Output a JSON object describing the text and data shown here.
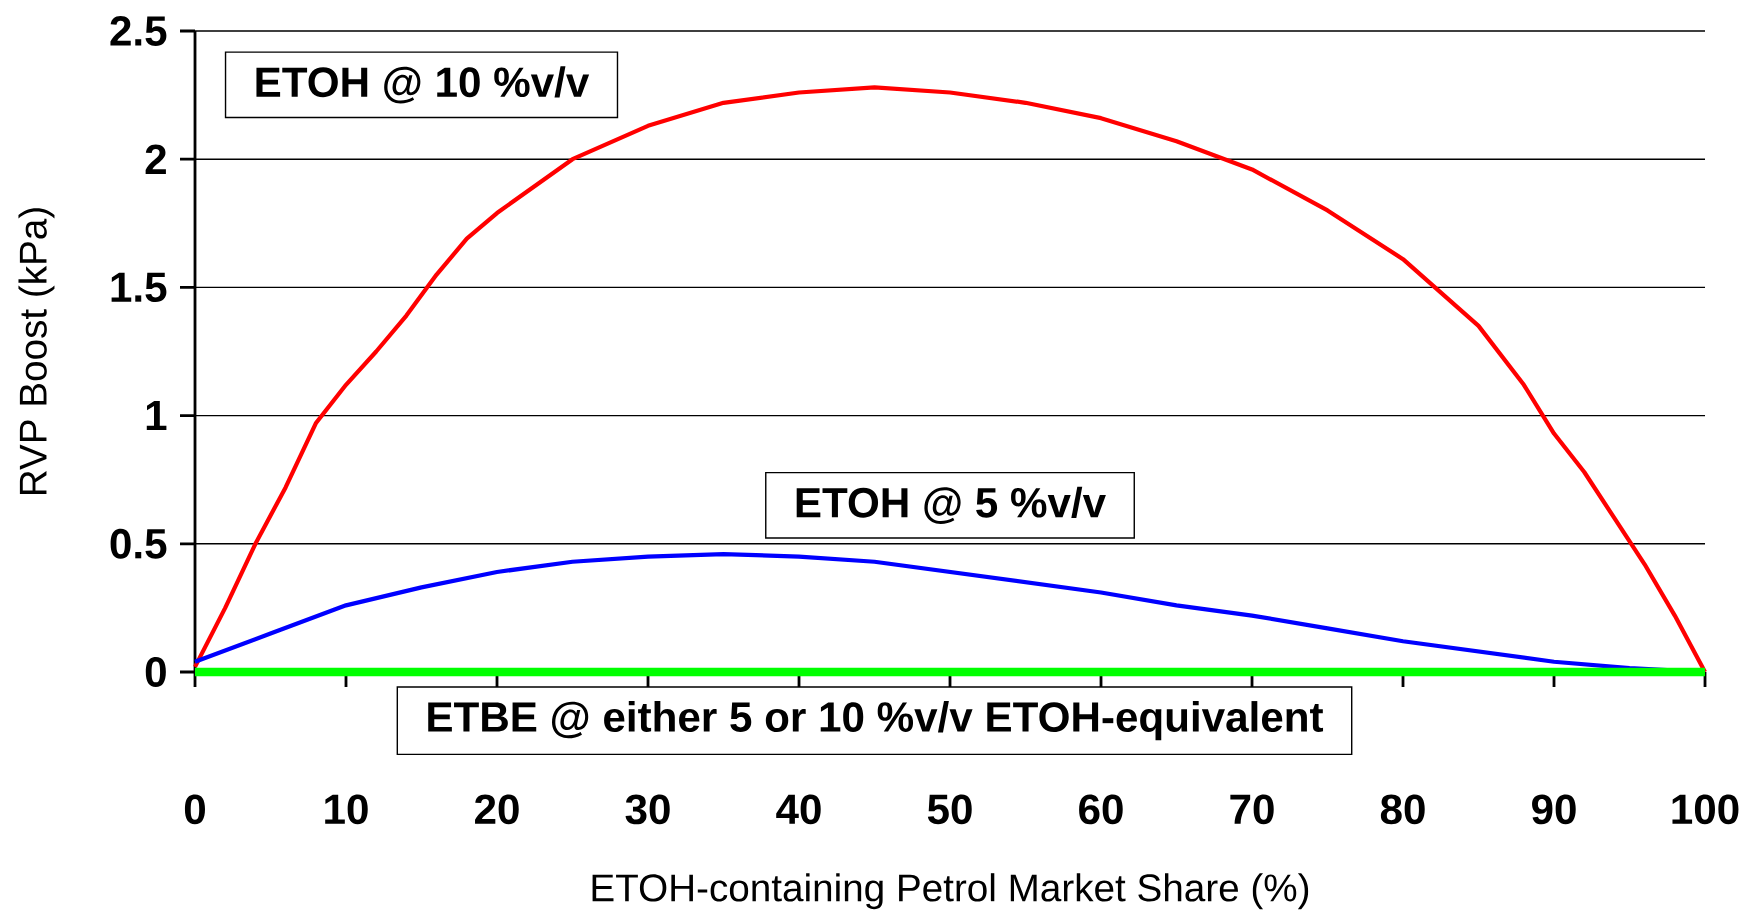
{
  "chart_data": {
    "type": "line",
    "xlabel": "ETOH-containing Petrol Market Share (%)",
    "ylabel": "RVP Boost (kPa)",
    "xlim": [
      0,
      100
    ],
    "ylim": [
      0,
      2.5
    ],
    "xticks": [
      0,
      10,
      20,
      30,
      40,
      50,
      60,
      70,
      80,
      90,
      100
    ],
    "yticks": [
      0,
      0.5,
      1,
      1.5,
      2,
      2.5
    ],
    "grid": "y",
    "marker": "none",
    "line_style": "solid",
    "series": [
      {
        "name": "ETOH @ 10 %v/v",
        "color": "#ff0000",
        "x": [
          0,
          2,
          4,
          6,
          8,
          10,
          12,
          14,
          16,
          18,
          20,
          25,
          30,
          35,
          40,
          45,
          50,
          55,
          60,
          65,
          70,
          75,
          80,
          85,
          88,
          90,
          92,
          94,
          96,
          98,
          100
        ],
        "values": [
          0.02,
          0.25,
          0.5,
          0.72,
          0.97,
          1.12,
          1.25,
          1.39,
          1.55,
          1.69,
          1.79,
          2.0,
          2.13,
          2.22,
          2.26,
          2.28,
          2.26,
          2.22,
          2.16,
          2.07,
          1.96,
          1.8,
          1.61,
          1.35,
          1.12,
          0.93,
          0.78,
          0.6,
          0.42,
          0.22,
          0
        ]
      },
      {
        "name": "ETOH @ 5 %v/v",
        "color": "#0000ff",
        "x": [
          0,
          5,
          10,
          15,
          20,
          25,
          30,
          35,
          40,
          45,
          50,
          55,
          60,
          65,
          70,
          75,
          80,
          85,
          90,
          95,
          100
        ],
        "values": [
          0.04,
          0.15,
          0.26,
          0.33,
          0.39,
          0.43,
          0.45,
          0.46,
          0.45,
          0.43,
          0.39,
          0.35,
          0.31,
          0.26,
          0.22,
          0.17,
          0.12,
          0.08,
          0.04,
          0.015,
          0
        ]
      },
      {
        "name": "ETBE @ either 5 or 10 %v/v ETOH-equivalent",
        "color": "#00ff00",
        "x": [
          0,
          100
        ],
        "values": [
          0,
          0
        ]
      }
    ]
  }
}
